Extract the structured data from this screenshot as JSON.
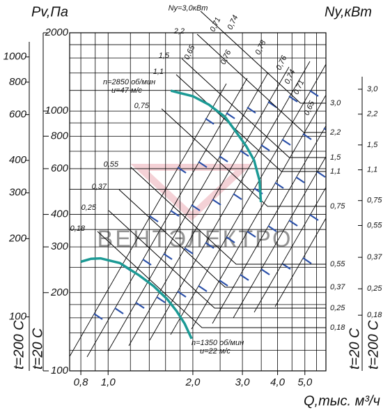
{
  "chart_data": {
    "type": "line",
    "y_label": "Pv,Па",
    "y2_label": "Ny,кВт",
    "x_label": "Q,тыс. м³/ч",
    "log_x": true,
    "log_y": true,
    "grid": true,
    "xlim": [
      0.73,
      5.94
    ],
    "ylim": [
      100,
      2000
    ],
    "xticks": [
      {
        "value": 0.8,
        "label": "0,8"
      },
      {
        "value": 1,
        "label": "1,0"
      },
      {
        "value": 2,
        "label": "2,0"
      },
      {
        "value": 3,
        "label": "3,0"
      },
      {
        "value": 4,
        "label": "4,0"
      },
      {
        "value": 5,
        "label": "5,0"
      }
    ],
    "yticks": [
      100,
      200,
      300,
      400,
      600,
      800,
      1000,
      2000
    ],
    "xgrid": [
      0.8,
      0.9,
      1,
      1.2,
      1.4,
      1.6,
      1.8,
      2,
      2.5,
      3,
      3.5,
      4,
      4.5,
      5,
      5.5
    ],
    "ygrid": [
      100,
      120,
      140,
      160,
      180,
      200,
      250,
      300,
      350,
      400,
      500,
      600,
      700,
      800,
      900,
      1000,
      1200,
      1400,
      1600,
      1800,
      2000
    ],
    "series": [
      {
        "name": "n=2850 об/мин",
        "speed_label": "u=47 м/с",
        "color": "#1b9a95",
        "x": [
          1.67,
          2.0,
          2.28,
          2.6,
          2.86,
          3.1,
          3.3,
          3.45,
          3.49
        ],
        "values": [
          1197,
          1140,
          1058,
          950,
          826,
          730,
          646,
          540,
          446
        ]
      },
      {
        "name": "n=1350 об/мин",
        "speed_label": "u=22 м/с",
        "color": "#1b9a95",
        "x": [
          0.8,
          0.87,
          0.94,
          1.1,
          1.29,
          1.45,
          1.62,
          1.75,
          1.87,
          1.98
        ],
        "values": [
          263,
          270,
          271,
          260,
          233,
          212,
          189,
          170,
          152,
          133
        ]
      }
    ],
    "aux_left": {
      "label": "t=200 С",
      "ylim": [
        62,
        1239
      ],
      "ticks": [
        100,
        200,
        300,
        400,
        600,
        800,
        1000
      ]
    },
    "main_temp_label": "t=20 С",
    "y2lim": [
      0.09,
      6.06
    ],
    "y2ticks": [
      {
        "value": 3,
        "label": "3,0"
      },
      {
        "value": 2.2,
        "label": "2,2"
      },
      {
        "value": 1.5,
        "label": "1,5"
      },
      {
        "value": 1.1,
        "label": "1,1"
      },
      {
        "value": 0.75,
        "label": "0,75"
      },
      {
        "value": 0.55,
        "label": "0,55"
      },
      {
        "value": 0.37,
        "label": "0,37"
      },
      {
        "value": 0.25,
        "label": "0,25"
      },
      {
        "value": 0.18,
        "label": "0,18"
      }
    ],
    "y2_temp_labels": [
      "t=20 С",
      "t=200 С"
    ],
    "power_lines": [
      {
        "value": 0.18,
        "label": "0,18",
        "left_label": "0,18"
      },
      {
        "value": 0.25,
        "label": "0,25",
        "left_label": "0,25"
      },
      {
        "value": 0.37,
        "label": "0,37",
        "left_label": "0,37"
      },
      {
        "value": 0.55,
        "label": "0,55",
        "left_label": "0,55"
      },
      {
        "value": 0.75,
        "label": "0,75",
        "left_label": "0,75"
      },
      {
        "value": 1.1,
        "label": "1,1",
        "left_label": "1,1"
      },
      {
        "value": 1.5,
        "label": "1,5",
        "left_label": "1,5"
      },
      {
        "value": 2.2,
        "label": "2,2",
        "left_label": "2,2"
      },
      {
        "value": 3,
        "label": "3,0",
        "left_label": "Ny=3,0кВт"
      }
    ],
    "efficiency_labels": [
      "0,65",
      "0,71",
      "0,74",
      "0,76",
      "0,78",
      "0,76",
      "0,74",
      "0,71",
      "0,65"
    ],
    "watermark": "ВЕНТЭЛЕКТРО"
  }
}
